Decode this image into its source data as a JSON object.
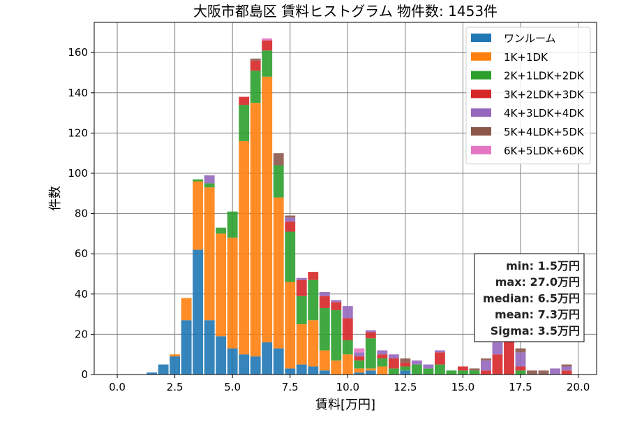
{
  "chart_data": {
    "type": "bar",
    "stacked": true,
    "title": "大阪市都島区 賃料ヒストグラム  物件数: 1453件",
    "xlabel": "賃料[万円]",
    "ylabel": "件数",
    "xlim": [
      -1.0,
      20.8
    ],
    "ylim": [
      0,
      175
    ],
    "xticks": [
      0.0,
      2.5,
      5.0,
      7.5,
      10.0,
      12.5,
      15.0,
      17.5,
      20.0
    ],
    "xtick_labels": [
      "0.0",
      "2.5",
      "5.0",
      "7.5",
      "10.0",
      "12.5",
      "15.0",
      "17.5",
      "20.0"
    ],
    "yticks": [
      0,
      20,
      40,
      60,
      80,
      100,
      120,
      140,
      160
    ],
    "ytick_labels": [
      "0",
      "20",
      "40",
      "60",
      "80",
      "100",
      "120",
      "140",
      "160"
    ],
    "grid": true,
    "legend_position": "top-right",
    "bin_width": 0.5,
    "x": [
      1.5,
      2.0,
      2.5,
      3.0,
      3.5,
      4.0,
      4.5,
      5.0,
      5.5,
      6.0,
      6.5,
      7.0,
      7.5,
      8.0,
      8.5,
      9.0,
      9.5,
      10.0,
      10.5,
      11.0,
      11.5,
      12.0,
      12.5,
      13.0,
      13.5,
      14.0,
      14.5,
      15.0,
      15.5,
      16.0,
      16.5,
      17.0,
      17.5,
      18.0,
      18.5,
      19.0,
      19.5
    ],
    "series": [
      {
        "name": "ワンルーム",
        "color": "#1f77b4",
        "values": [
          1,
          5,
          9,
          27,
          62,
          27,
          19,
          13,
          10,
          9,
          16,
          13,
          3,
          5,
          4,
          2,
          0,
          0,
          1,
          2,
          0,
          0,
          2,
          0,
          0,
          0,
          0,
          0,
          0,
          0,
          0,
          0,
          0,
          0,
          0,
          0,
          0
        ]
      },
      {
        "name": "1K+1DK",
        "color": "#ff7f0e",
        "values": [
          0,
          0,
          1,
          11,
          34,
          66,
          51,
          55,
          106,
          126,
          132,
          75,
          43,
          20,
          23,
          10,
          7,
          10,
          2,
          1,
          4,
          0,
          0,
          0,
          0,
          0,
          0,
          0,
          0,
          0,
          0,
          0,
          0,
          0,
          0,
          0,
          0
        ]
      },
      {
        "name": "2K+1LDK+2DK",
        "color": "#2ca02c",
        "values": [
          0,
          0,
          0,
          0,
          1,
          2,
          3,
          13,
          18,
          16,
          13,
          16,
          25,
          14,
          20,
          21,
          25,
          7,
          4,
          15,
          4,
          3,
          2,
          5,
          3,
          5,
          2,
          2,
          2,
          0,
          0,
          0,
          2,
          0,
          0,
          0,
          0
        ]
      },
      {
        "name": "3K+2LDK+3DK",
        "color": "#d62728",
        "values": [
          0,
          0,
          0,
          0,
          0,
          0,
          0,
          0,
          4,
          5,
          5,
          0,
          5,
          8,
          4,
          6,
          4,
          11,
          2,
          3,
          2,
          5,
          2,
          0,
          0,
          6,
          0,
          2,
          0,
          2,
          10,
          19,
          2,
          0,
          0,
          0,
          2
        ]
      },
      {
        "name": "4K+3LDK+4DK",
        "color": "#9467bd",
        "values": [
          0,
          0,
          0,
          0,
          0,
          4,
          0,
          0,
          0,
          0,
          0,
          0,
          2,
          1,
          0,
          2,
          1,
          6,
          2,
          1,
          2,
          2,
          0,
          2,
          2,
          1,
          0,
          0,
          0,
          5,
          6,
          0,
          7,
          0,
          0,
          3,
          2
        ]
      },
      {
        "name": "5K+4LDK+5DK",
        "color": "#8c564b",
        "values": [
          0,
          0,
          0,
          0,
          0,
          0,
          0,
          0,
          0,
          1,
          0,
          6,
          1,
          0,
          0,
          0,
          0,
          0,
          0,
          0,
          0,
          0,
          2,
          0,
          0,
          0,
          0,
          0,
          1,
          1,
          0,
          0,
          2,
          2,
          2,
          0,
          1
        ]
      },
      {
        "name": "6K+5LDK+6DK",
        "color": "#e377c2",
        "values": [
          0,
          0,
          0,
          0,
          0,
          0,
          0,
          0,
          0,
          0,
          1,
          0,
          0,
          0,
          0,
          0,
          0,
          0,
          2,
          0,
          0,
          0,
          0,
          0,
          0,
          0,
          0,
          0,
          0,
          0,
          0,
          0,
          0,
          0,
          0,
          0,
          0
        ]
      }
    ],
    "stats_box": [
      "min: 1.5万円",
      "max: 27.0万円",
      "median: 6.5万円",
      "mean: 7.3万円",
      "Sigma: 3.5万円"
    ]
  }
}
